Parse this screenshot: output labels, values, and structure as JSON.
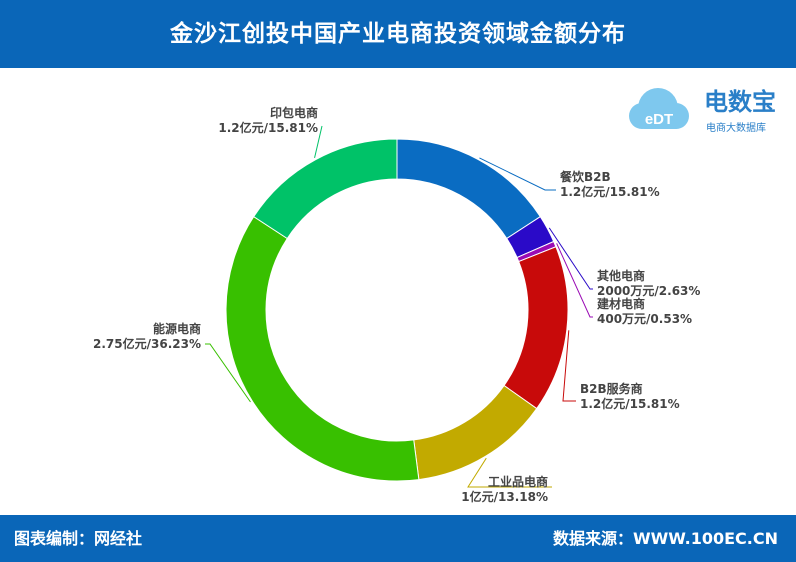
{
  "header": {
    "title": "金沙江创投中国产业电商投资领域金额分布"
  },
  "footer": {
    "left": "图表编制：网经社",
    "right": "数据来源：WWW.100EC.CN"
  },
  "logo": {
    "text": "电数宝",
    "subtitle": "电商大数据库",
    "cloud_text": "eDT"
  },
  "colors": {
    "header": "#0a66b8",
    "slices": [
      "#0a6cc2",
      "#2a0ac8",
      "#9a0ab4",
      "#c80a0a",
      "#c2aa00",
      "#38c000",
      "#00c268"
    ]
  },
  "chart_data": {
    "type": "pie",
    "donut": true,
    "title": "金沙江创投中国产业电商投资领域金额分布",
    "slices": [
      {
        "name": "餐饮B2B",
        "amount": "1.2亿元",
        "percent": 15.81,
        "label": "1.2亿元/15.81%"
      },
      {
        "name": "其他电商",
        "amount": "2000万元",
        "percent": 2.63,
        "label": "2000万元/2.63%"
      },
      {
        "name": "建材电商",
        "amount": "400万元",
        "percent": 0.53,
        "label": "400万元/0.53%"
      },
      {
        "name": "B2B服务商",
        "amount": "1.2亿元",
        "percent": 15.81,
        "label": "1.2亿元/15.81%"
      },
      {
        "name": "工业品电商",
        "amount": "1亿元",
        "percent": 13.18,
        "label": "1亿元/13.18%"
      },
      {
        "name": "能源电商",
        "amount": "2.75亿元",
        "percent": 36.23,
        "label": "2.75亿元/36.23%"
      },
      {
        "name": "印包电商",
        "amount": "1.2亿元",
        "percent": 15.81,
        "label": "1.2亿元/15.81%"
      }
    ]
  }
}
